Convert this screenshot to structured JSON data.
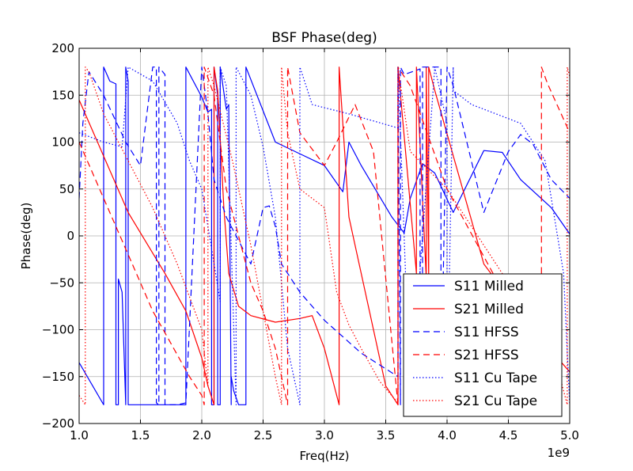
{
  "chart_data": {
    "type": "line",
    "title": "BSF Phase(deg)",
    "xlabel": "Freq(Hz)",
    "ylabel": "Phase(deg)",
    "x_multiplier_label": "1e9",
    "xlim": [
      1.0,
      5.0
    ],
    "ylim": [
      -200,
      200
    ],
    "x_ticks": [
      1.0,
      1.5,
      2.0,
      2.5,
      3.0,
      3.5,
      4.0,
      4.5,
      5.0
    ],
    "x_tick_labels": [
      "1.0",
      "1.5",
      "2.0",
      "2.5",
      "3.0",
      "3.5",
      "4.0",
      "4.5",
      "5.0"
    ],
    "y_ticks": [
      -200,
      -150,
      -100,
      -50,
      0,
      50,
      100,
      150,
      200
    ],
    "y_tick_labels": [
      "−200",
      "−150",
      "−100",
      "−50",
      "0",
      "50",
      "100",
      "150",
      "200"
    ],
    "grid": true,
    "legend_position": "bottom-right",
    "colors": {
      "blue": "#0000ff",
      "red": "#ff0000"
    },
    "series": [
      {
        "name": "S11 Milled",
        "color": "#0000ff",
        "style": "solid",
        "x": [
          1.0,
          1.2,
          1.2,
          1.25,
          1.3,
          1.3,
          1.32,
          1.32,
          1.35,
          1.38,
          1.38,
          1.4,
          1.4,
          1.87,
          1.87,
          2.0,
          2.05,
          2.08,
          2.08,
          2.1,
          2.1,
          2.13,
          2.13,
          2.15,
          2.15,
          2.2,
          2.22,
          2.24,
          2.24,
          2.26,
          2.3,
          2.36,
          2.36,
          2.6,
          3.0,
          3.15,
          3.2,
          3.3,
          3.55,
          3.65,
          3.7,
          3.8,
          3.9,
          4.05,
          4.3,
          4.45,
          4.6,
          4.85,
          5.0
        ],
        "y": [
          -135,
          -180,
          180,
          165,
          162,
          -180,
          -180,
          -46,
          -60,
          -180,
          180,
          165,
          -180,
          -180,
          180,
          148,
          132,
          135,
          -180,
          -180,
          180,
          150,
          -180,
          -180,
          180,
          135,
          140,
          -180,
          -150,
          -165,
          -180,
          -180,
          180,
          100,
          75,
          47,
          100,
          75,
          20,
          3,
          40,
          77,
          67,
          25,
          91,
          89,
          60,
          30,
          2
        ]
      },
      {
        "name": "S21 Milled",
        "color": "#ff0000",
        "style": "solid",
        "x": [
          1.0,
          1.4,
          1.7,
          1.87,
          2.0,
          2.05,
          2.1,
          2.1,
          2.13,
          2.18,
          2.22,
          2.3,
          2.4,
          2.6,
          2.8,
          2.9,
          3.0,
          3.12,
          3.12,
          3.2,
          3.5,
          3.6,
          3.6,
          3.75,
          3.75,
          3.83,
          3.83,
          3.85,
          3.85,
          3.9,
          4.3,
          4.7,
          5.0
        ],
        "y": [
          145,
          25,
          -40,
          -80,
          -130,
          -160,
          -180,
          180,
          155,
          30,
          -40,
          -75,
          -85,
          -92,
          -88,
          -85,
          -120,
          -180,
          180,
          20,
          -160,
          -180,
          180,
          -40,
          180,
          -45,
          180,
          -45,
          180,
          155,
          -30,
          -100,
          -145
        ]
      },
      {
        "name": "S11 HFSS",
        "color": "#0000ff",
        "style": "dashed",
        "x": [
          1.0,
          1.03,
          1.08,
          1.2,
          1.38,
          1.5,
          1.6,
          1.63,
          1.63,
          1.65,
          1.65,
          1.7,
          1.7,
          1.8,
          1.87,
          2.0,
          2.05,
          2.1,
          2.2,
          2.4,
          2.45,
          2.5,
          2.55,
          2.6,
          2.65,
          2.8,
          3.0,
          3.3,
          3.6,
          3.6,
          3.62,
          3.62,
          3.65,
          3.78,
          3.78,
          3.8,
          3.8,
          3.95,
          3.95,
          4.0,
          4.05,
          4.3,
          4.5,
          4.6,
          4.7,
          4.85,
          5.0
        ],
        "y": [
          40,
          120,
          175,
          150,
          100,
          75,
          180,
          180,
          -178,
          -180,
          180,
          172,
          -180,
          -180,
          -178,
          180,
          130,
          60,
          20,
          -30,
          0,
          30,
          32,
          10,
          -30,
          -60,
          -90,
          -125,
          -150,
          180,
          -180,
          180,
          172,
          178,
          -180,
          -180,
          180,
          180,
          -180,
          180,
          160,
          25,
          90,
          108,
          98,
          60,
          40
        ]
      },
      {
        "name": "S21 HFSS",
        "color": "#ff0000",
        "style": "dashed",
        "x": [
          1.0,
          1.3,
          1.6,
          1.9,
          2.0,
          2.02,
          2.02,
          2.1,
          2.2,
          2.4,
          2.5,
          2.6,
          2.7,
          2.7,
          2.8,
          3.0,
          3.1,
          3.25,
          3.4,
          3.6,
          3.6,
          3.7,
          4.0,
          4.5,
          4.77,
          4.77,
          4.82,
          5.0
        ],
        "y": [
          100,
          10,
          -80,
          -150,
          -170,
          -180,
          180,
          150,
          50,
          -50,
          -80,
          -120,
          -180,
          180,
          110,
          75,
          100,
          140,
          90,
          -180,
          180,
          160,
          50,
          -70,
          -180,
          180,
          162,
          110
        ]
      },
      {
        "name": "S11 Cu Tape",
        "color": "#0000ff",
        "style": "dotted",
        "x": [
          1.0,
          1.2,
          1.35,
          1.4,
          1.4,
          1.6,
          1.8,
          1.9,
          2.0,
          2.05,
          2.15,
          2.15,
          2.2,
          2.28,
          2.28,
          2.3,
          2.4,
          2.5,
          2.6,
          2.7,
          2.8,
          2.8,
          2.9,
          3.2,
          3.6,
          3.6,
          3.7,
          3.9,
          4.0,
          4.0,
          4.05,
          4.05,
          4.2,
          4.4,
          4.6,
          4.8,
          4.95,
          5.0
        ],
        "y": [
          110,
          100,
          95,
          180,
          180,
          165,
          120,
          80,
          50,
          10,
          -70,
          180,
          160,
          -180,
          180,
          175,
          150,
          95,
          20,
          -120,
          -180,
          180,
          140,
          130,
          115,
          180,
          -180,
          180,
          120,
          -180,
          180,
          155,
          140,
          130,
          120,
          80,
          -40,
          -180
        ]
      },
      {
        "name": "S21 Cu Tape",
        "color": "#ff0000",
        "style": "dotted",
        "x": [
          1.0,
          1.05,
          1.05,
          1.08,
          1.2,
          1.4,
          1.6,
          1.8,
          2.0,
          2.05,
          2.05,
          2.1,
          2.25,
          2.4,
          2.5,
          2.6,
          2.65,
          2.65,
          2.7,
          2.8,
          3.0,
          3.1,
          3.2,
          3.3,
          3.45,
          3.58,
          3.6,
          3.6,
          3.7,
          4.0,
          4.3,
          4.6,
          4.9,
          4.98,
          4.98,
          5.0
        ],
        "y": [
          -170,
          -180,
          180,
          175,
          130,
          80,
          30,
          -30,
          -100,
          -160,
          180,
          160,
          80,
          -10,
          -80,
          -150,
          -180,
          180,
          110,
          50,
          30,
          -60,
          -95,
          -120,
          -155,
          -175,
          -180,
          180,
          90,
          50,
          -10,
          -70,
          -140,
          -180,
          180,
          170
        ]
      }
    ]
  }
}
